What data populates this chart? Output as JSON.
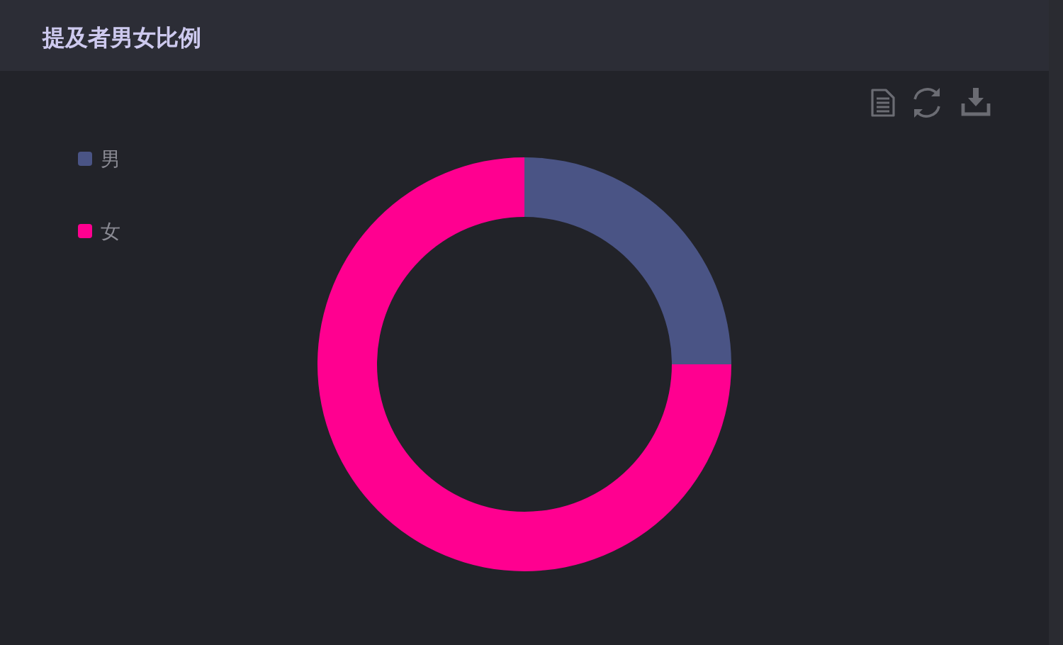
{
  "chart_data": {
    "type": "donut",
    "title": "提及者男女比例",
    "categories": [
      "男",
      "女"
    ],
    "values": [
      25,
      75
    ],
    "colors": [
      "#4a5485",
      "#ff0090"
    ],
    "legend": "top left"
  }
}
